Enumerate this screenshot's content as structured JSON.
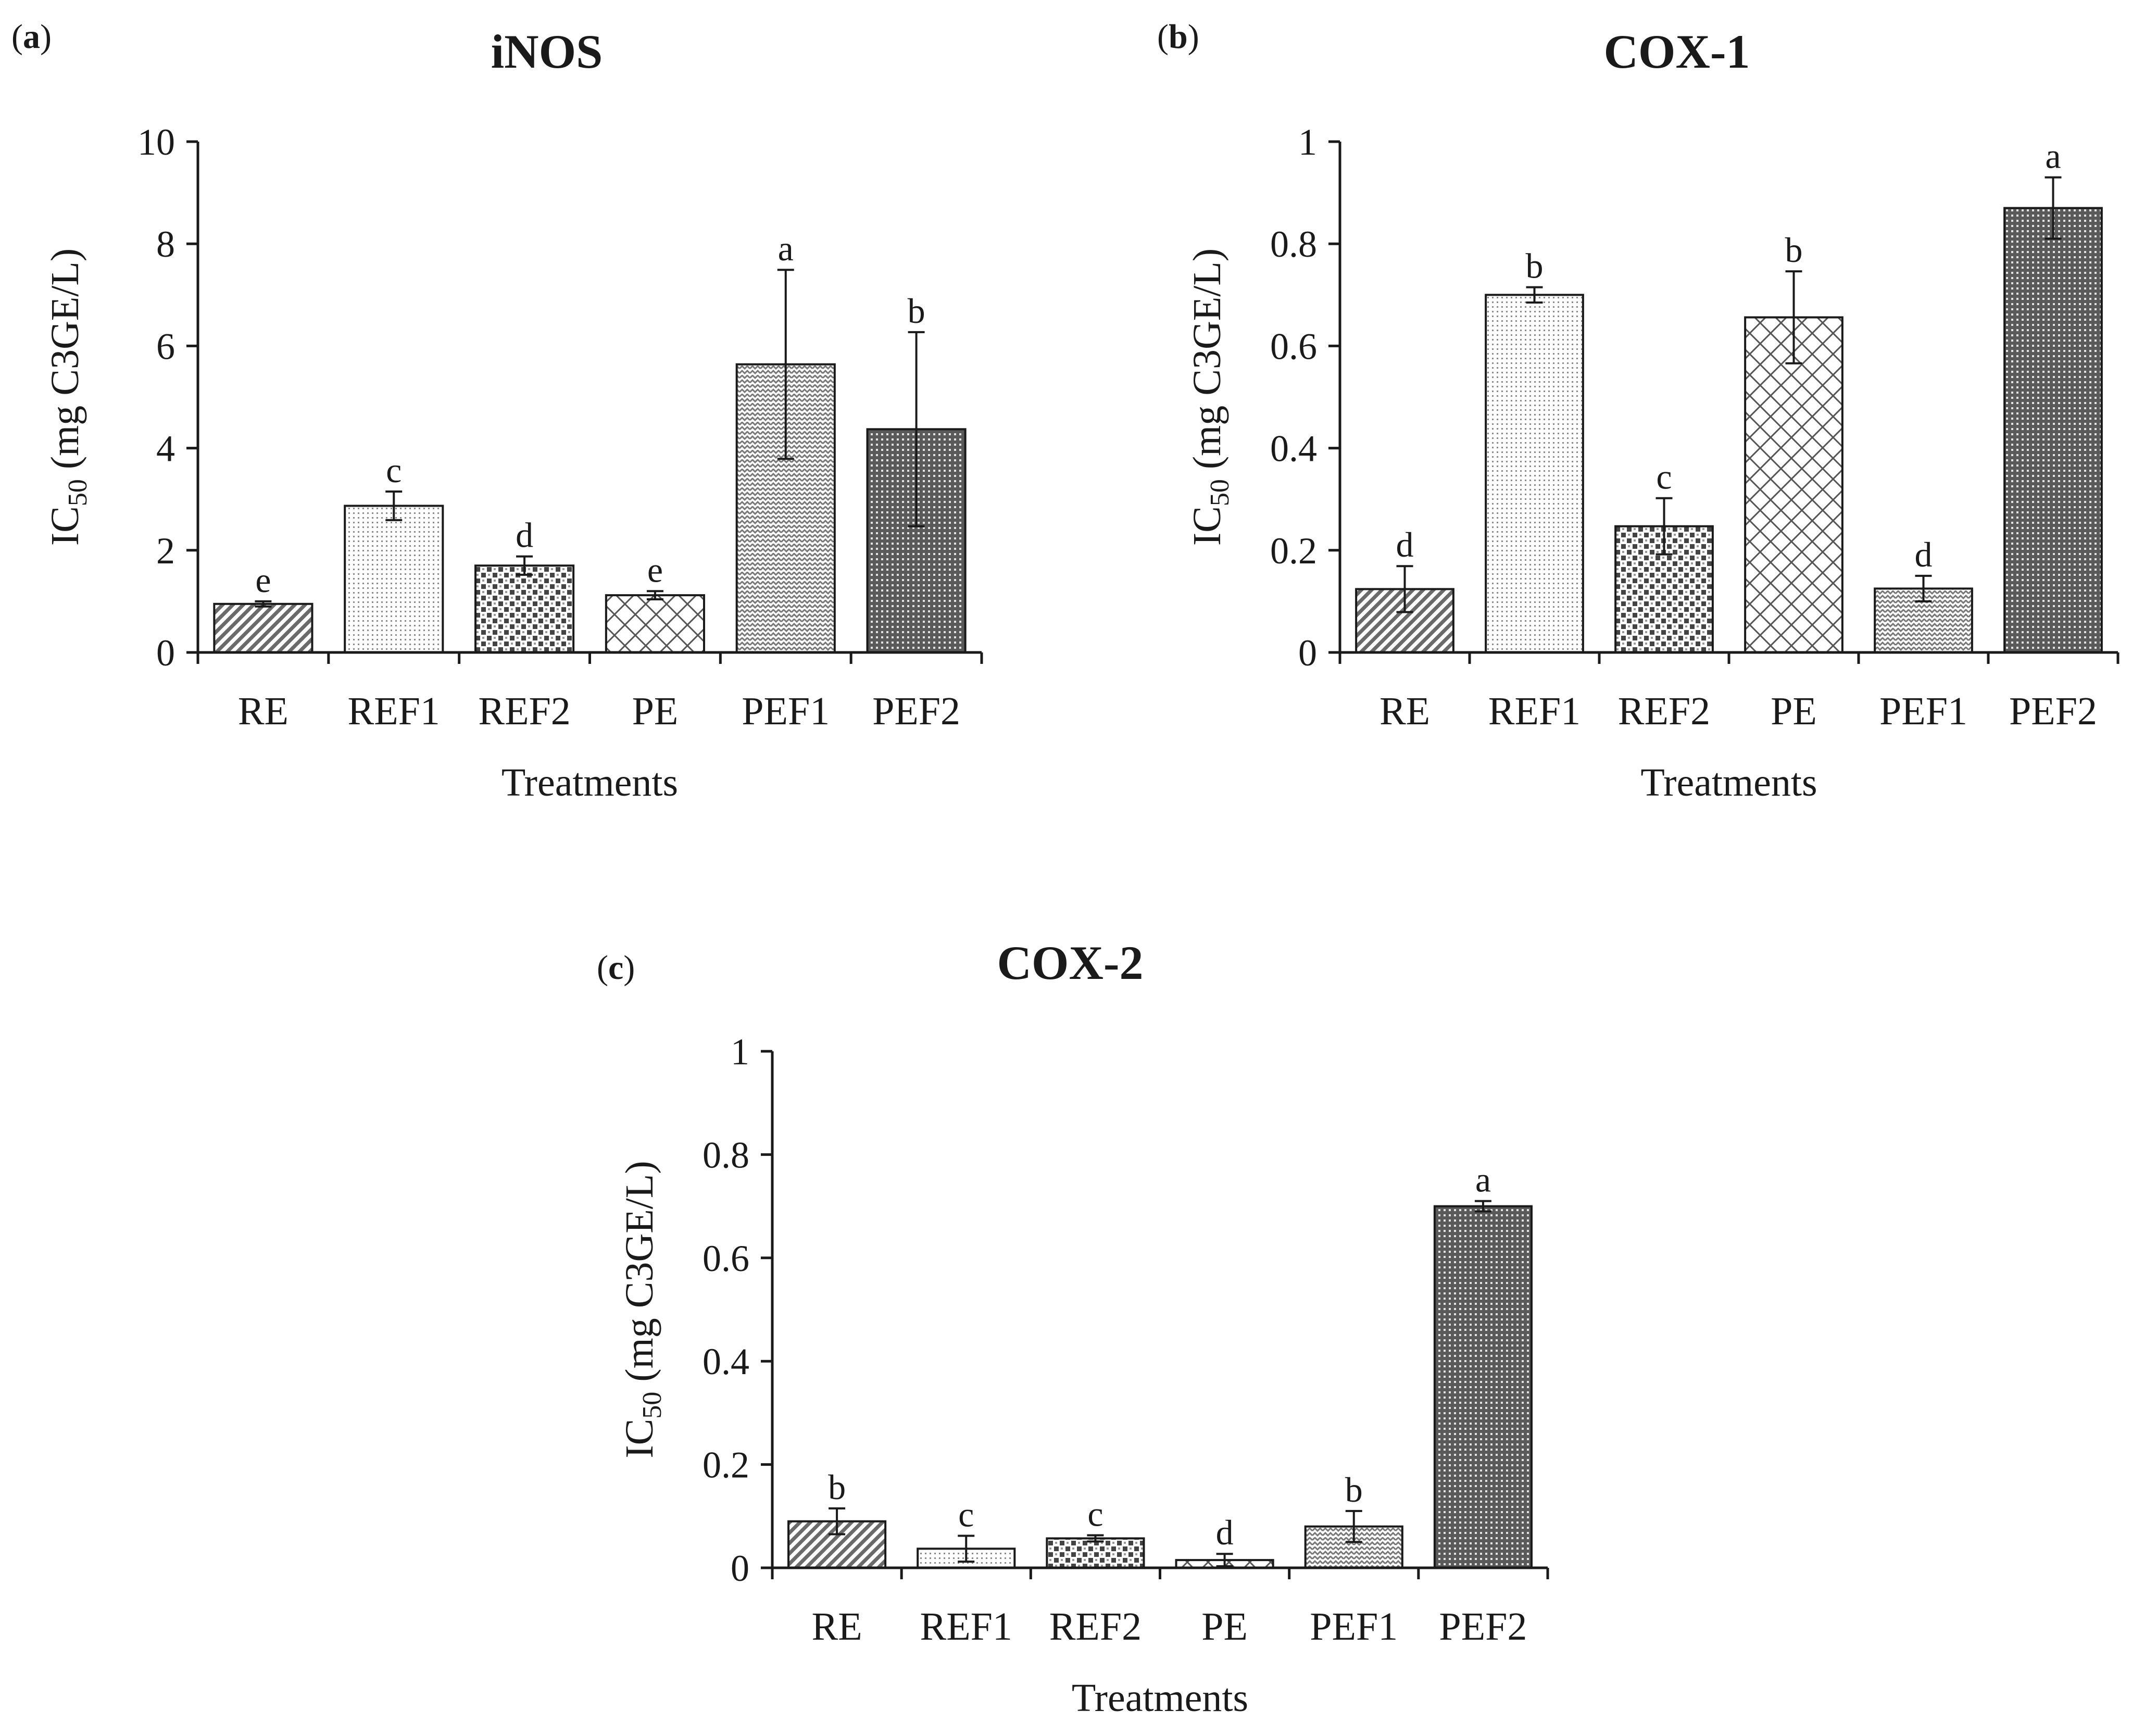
{
  "colors": {
    "ink": "#1a1a1a",
    "background": "#ffffff"
  },
  "chart_data": [
    {
      "type": "bar",
      "panel_label": "a",
      "title": "iNOS",
      "categories": [
        "RE",
        "REF1",
        "REF2",
        "PE",
        "PEF1",
        "PEF2"
      ],
      "values": [
        0.95,
        2.87,
        1.7,
        1.12,
        5.64,
        4.37
      ],
      "errors": [
        0.05,
        0.28,
        0.18,
        0.08,
        1.85,
        1.9
      ],
      "significance": [
        "e",
        "c",
        "d",
        "e",
        "a",
        "b"
      ],
      "patterns": [
        "diag-hatch",
        "fine-dots",
        "checker",
        "crosshatch",
        "zigzag",
        "dense-dots"
      ],
      "ylim": [
        0,
        10
      ],
      "yticks": [
        0,
        2,
        4,
        6,
        8,
        10
      ],
      "ytick_labels": [
        "0",
        "2",
        "4",
        "6",
        "8",
        "10"
      ],
      "xlabel": "Treatments",
      "ylabel": {
        "prefix": "IC",
        "subscript": "50",
        "suffix": " (mg C3GE/L)"
      }
    },
    {
      "type": "bar",
      "panel_label": "b",
      "title": "COX-1",
      "categories": [
        "RE",
        "REF1",
        "REF2",
        "PE",
        "PEF1",
        "PEF2"
      ],
      "values": [
        0.124,
        0.7,
        0.247,
        0.656,
        0.125,
        0.87
      ],
      "errors": [
        0.045,
        0.015,
        0.055,
        0.09,
        0.025,
        0.06
      ],
      "significance": [
        "d",
        "b",
        "c",
        "b",
        "d",
        "a"
      ],
      "patterns": [
        "diag-hatch",
        "fine-dots",
        "checker",
        "crosshatch",
        "zigzag",
        "dense-dots"
      ],
      "ylim": [
        0,
        1
      ],
      "yticks": [
        0,
        0.2,
        0.4,
        0.6,
        0.8,
        1
      ],
      "ytick_labels": [
        "0",
        "0.2",
        "0.4",
        "0.6",
        "0.8",
        "1"
      ],
      "xlabel": "Treatments",
      "ylabel": {
        "prefix": "IC",
        "subscript": "50",
        "suffix": " (mg C3GE/L)"
      }
    },
    {
      "type": "bar",
      "panel_label": "c",
      "title": "COX-2",
      "categories": [
        "RE",
        "REF1",
        "REF2",
        "PE",
        "PEF1",
        "PEF2"
      ],
      "values": [
        0.09,
        0.037,
        0.057,
        0.015,
        0.08,
        0.7
      ],
      "errors": [
        0.025,
        0.025,
        0.006,
        0.012,
        0.03,
        0.01
      ],
      "significance": [
        "b",
        "c",
        "c",
        "d",
        "b",
        "a"
      ],
      "patterns": [
        "diag-hatch",
        "fine-dots",
        "checker",
        "crosshatch",
        "zigzag",
        "dense-dots"
      ],
      "ylim": [
        0,
        1
      ],
      "yticks": [
        0,
        0.2,
        0.4,
        0.6,
        0.8,
        1
      ],
      "ytick_labels": [
        "0",
        "0.2",
        "0.4",
        "0.6",
        "0.8",
        "1"
      ],
      "xlabel": "Treatments",
      "ylabel": {
        "prefix": "IC",
        "subscript": "50",
        "suffix": " (mg C3GE/L)"
      }
    }
  ]
}
